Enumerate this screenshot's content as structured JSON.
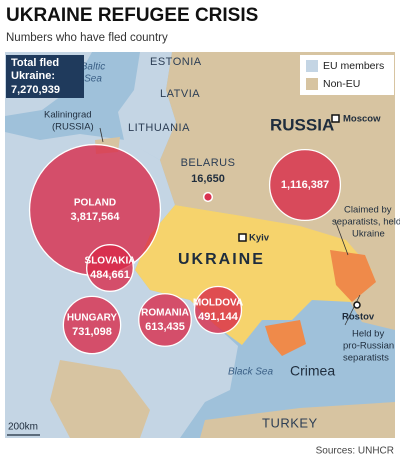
{
  "header": {
    "title": "UKRAINE REFUGEE CRISIS",
    "subtitle": "Numbers who have fled country"
  },
  "total": {
    "lines": [
      "Total fled",
      "Ukraine:"
    ],
    "value": "7,270,939"
  },
  "legend": [
    "EU members",
    "Non-EU"
  ],
  "bubbles": [
    {
      "name": "POLAND",
      "value": 3817564,
      "value_label": "3,817,564"
    },
    {
      "value": 1116387,
      "value_label": "1,116,387"
    },
    {
      "name": "BELARUS",
      "value": 16650,
      "value_label": "16,650"
    },
    {
      "name": "SLOVAKIA",
      "value": 484661,
      "value_label": "484,661"
    },
    {
      "name": "HUNGARY",
      "value": 731098,
      "value_label": "731,098"
    },
    {
      "name": "ROMANIA",
      "value": 613435,
      "value_label": "613,435"
    },
    {
      "name": "MOLDOVA",
      "value": 491144,
      "value_label": "491,144"
    }
  ],
  "places": {
    "estonia": "ESTONIA",
    "latvia": "LATVIA",
    "lithuania": "LITHUANIA",
    "baltic_sea": [
      "Baltic",
      "Sea"
    ],
    "kaliningrad": [
      "Kaliningrad",
      "(RUSSIA)"
    ],
    "russia": "RUSSIA",
    "moscow": "Moscow",
    "kyiv": "Kyiv",
    "ukraine": "UKRAINE",
    "rostov": "Rostov",
    "black_sea": "Black Sea",
    "crimea": "Crimea",
    "turkey": "TURKEY"
  },
  "annotations": {
    "claimed": [
      "Claimed by",
      "separatists, held by",
      "Ukraine"
    ],
    "held": [
      "Held by",
      "pro-Russian",
      "separatists"
    ]
  },
  "scale": "200km",
  "source": "Sources: UNHCR"
}
